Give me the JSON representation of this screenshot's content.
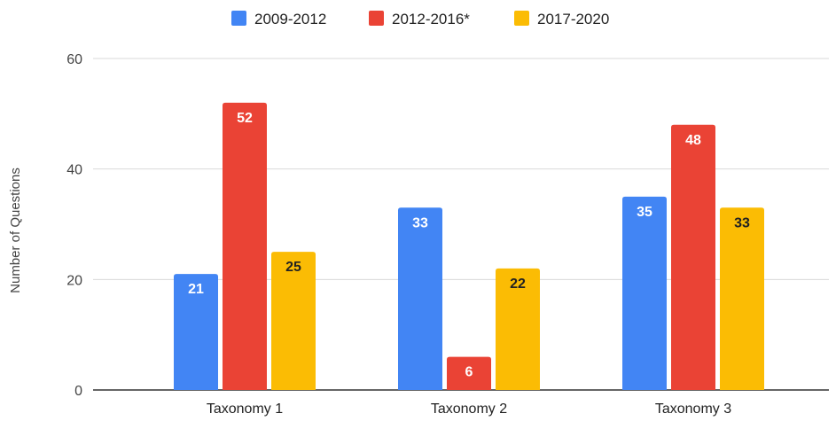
{
  "chart_data": {
    "type": "bar",
    "title": "",
    "xlabel": "",
    "ylabel": "Number of Questions",
    "ylim": [
      0,
      60
    ],
    "yticks": [
      0,
      20,
      40,
      60
    ],
    "grid": true,
    "legend_position": "top",
    "categories": [
      "Taxonomy 1",
      "Taxonomy 2",
      "Taxonomy 3"
    ],
    "series": [
      {
        "name": "2009-2012",
        "color": "#4285F4",
        "label_color": "#ffffff",
        "values": [
          21,
          33,
          35
        ]
      },
      {
        "name": "2012-2016*",
        "color": "#EA4335",
        "label_color": "#ffffff",
        "values": [
          52,
          6,
          48
        ]
      },
      {
        "name": "2017-2020",
        "color": "#FBBC04",
        "label_color": "#222222",
        "values": [
          25,
          22,
          33
        ]
      }
    ]
  }
}
